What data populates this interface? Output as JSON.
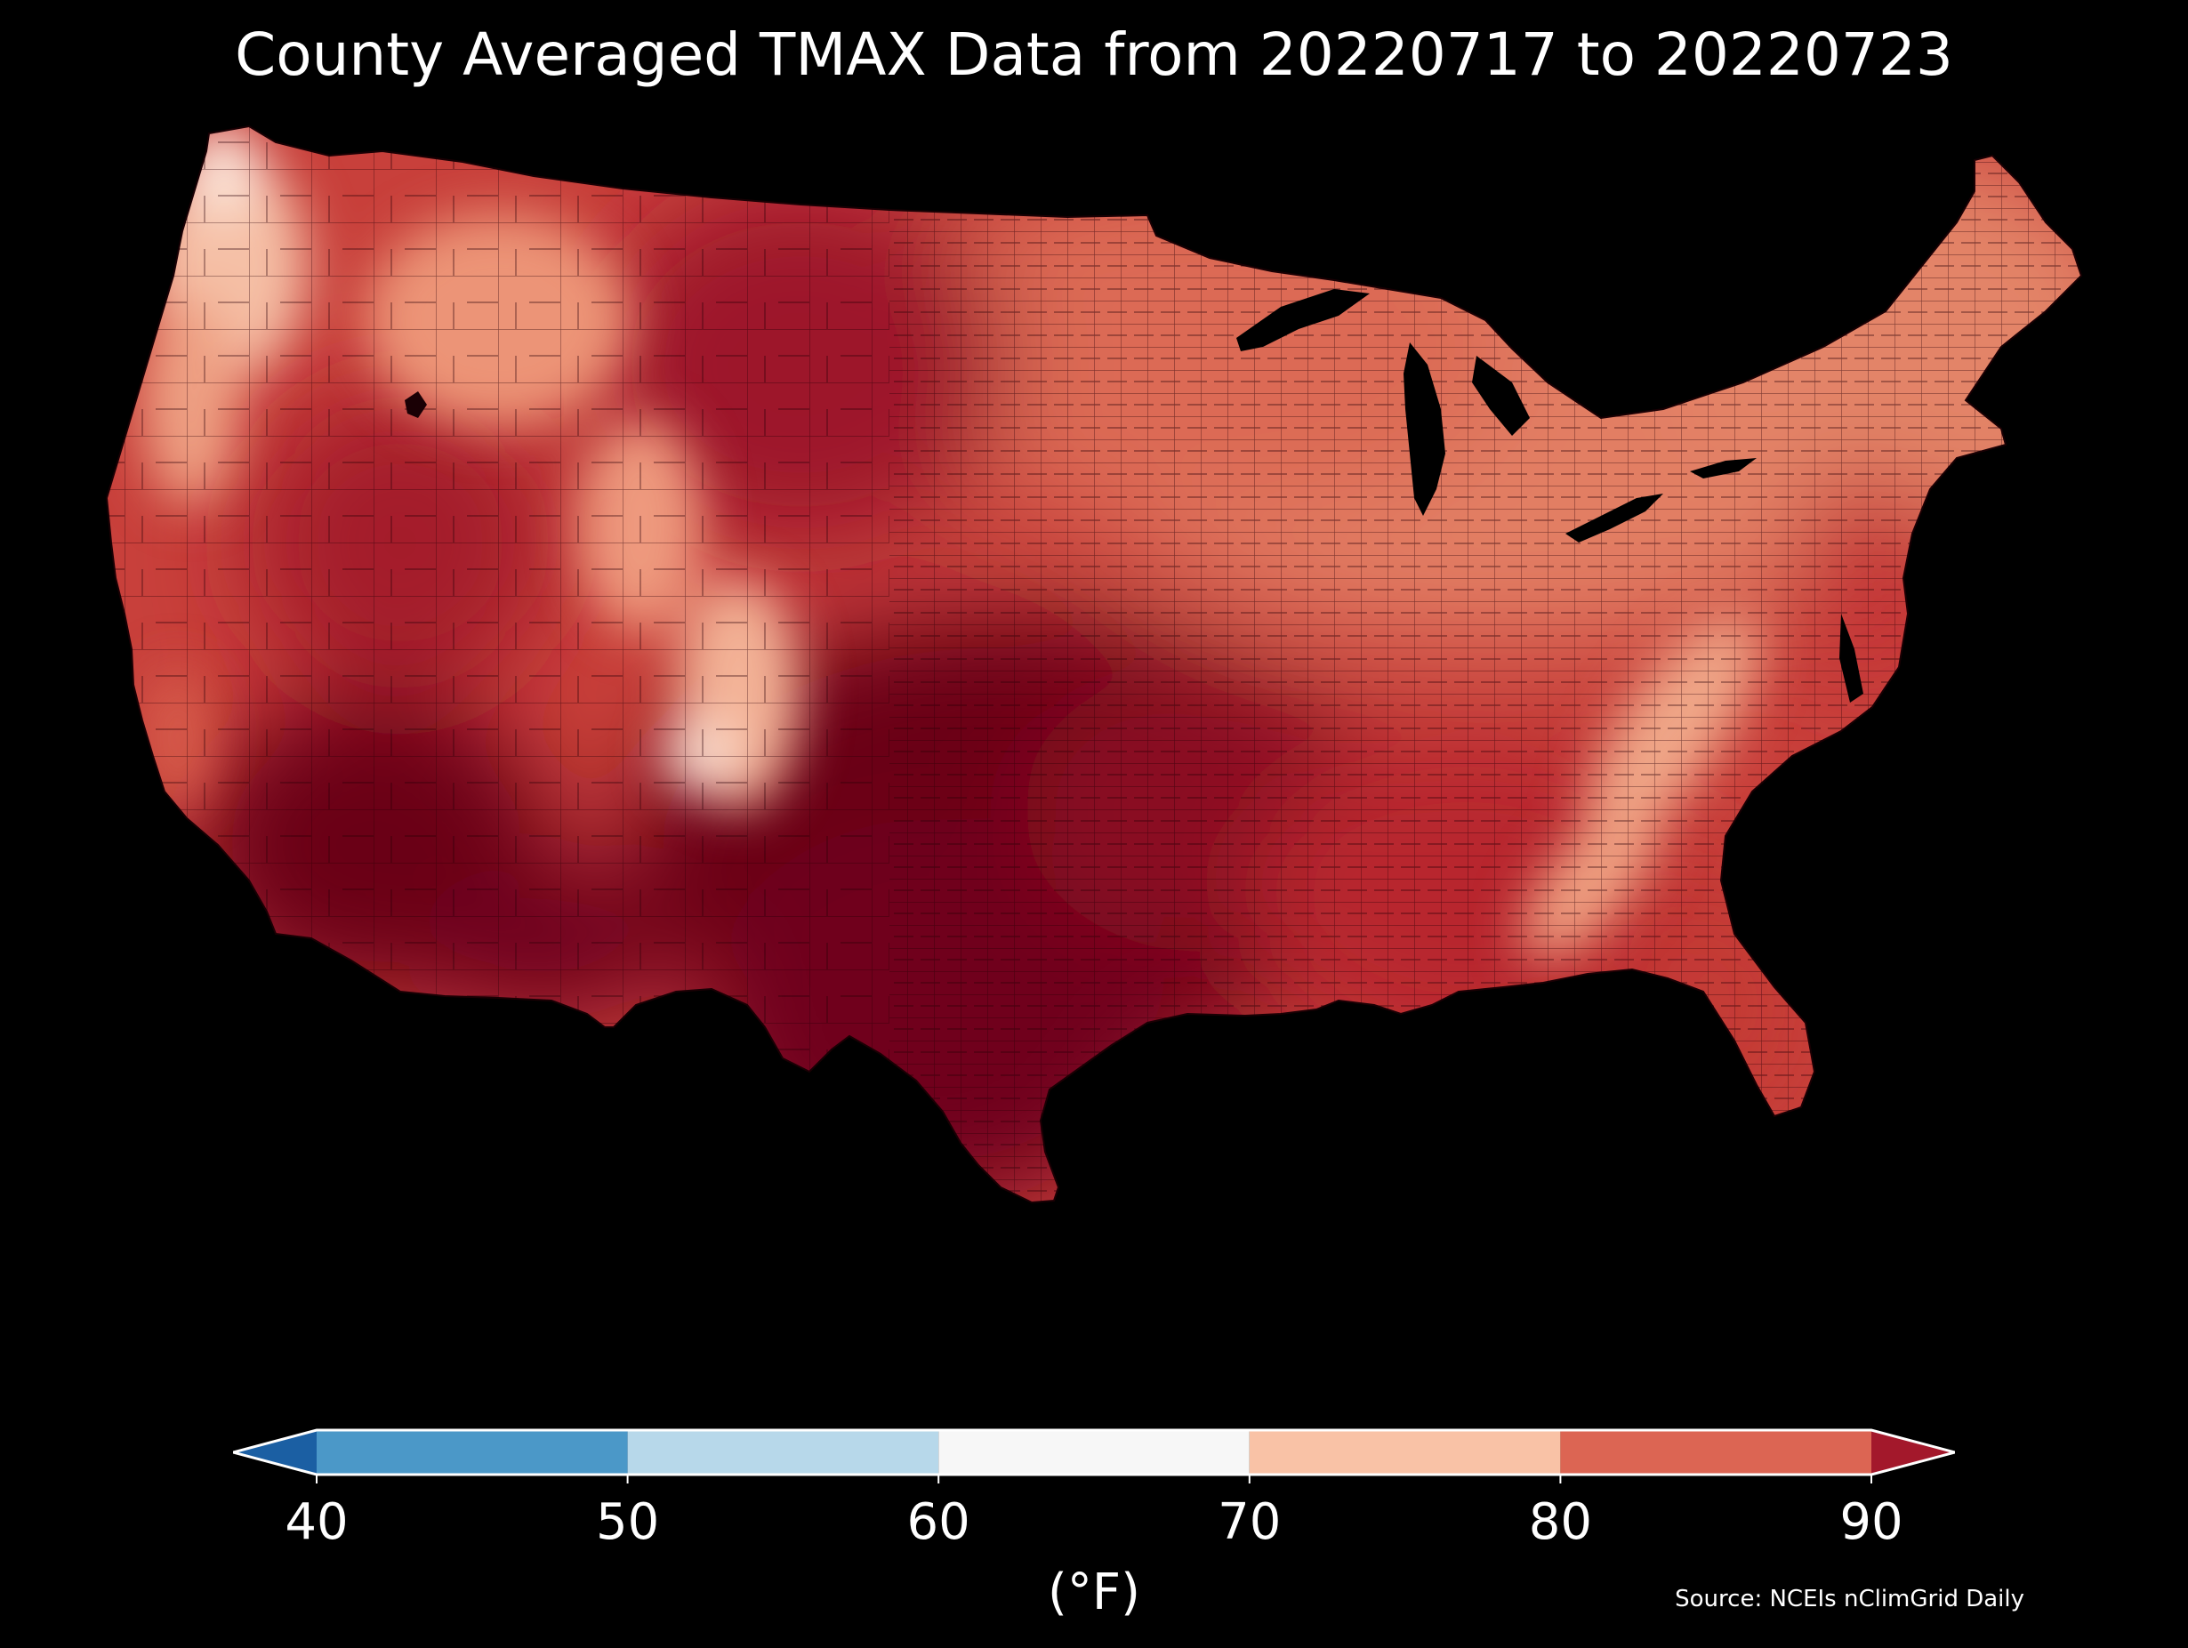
{
  "title": "County Averaged TMAX Data from 20220717 to 20220723",
  "source": "Source: NCEIs nClimGrid Daily",
  "colorbar": {
    "unit": "(°F)",
    "ticks": [
      "40",
      "50",
      "60",
      "70",
      "80",
      "90"
    ],
    "bins": [
      {
        "from": 40,
        "to": 50,
        "color": "#4b98c8"
      },
      {
        "from": 50,
        "to": 60,
        "color": "#b7d8ea"
      },
      {
        "from": 60,
        "to": 70,
        "color": "#f7f7f7"
      },
      {
        "from": 70,
        "to": 80,
        "color": "#f9c2a6"
      },
      {
        "from": 80,
        "to": 90,
        "color": "#dc6553"
      }
    ],
    "under_color": "#1b5fa3",
    "over_color": "#a3182b",
    "outline_color": "#ffffff"
  },
  "map_colors": {
    "hottest": "#6b0019",
    "very_hot": "#a3182b",
    "hot": "#c23335",
    "warm": "#dc6553",
    "mild": "#ec9577",
    "cool": "#f7c6ad",
    "coolest": "#fbe4d8",
    "lakes": "#000000"
  }
}
